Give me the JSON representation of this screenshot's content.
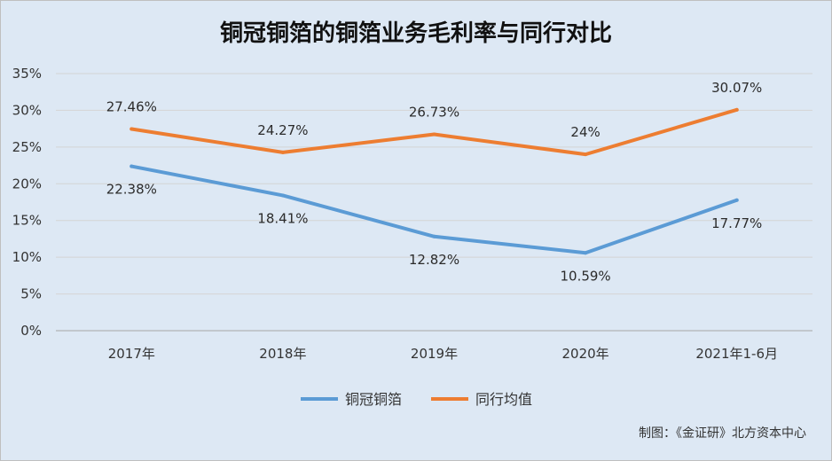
{
  "chart_data": {
    "type": "line",
    "title": "铜冠铜箔的铜箔业务毛利率与同行对比",
    "categories": [
      "2017年",
      "2018年",
      "2019年",
      "2020年",
      "2021年1-6月"
    ],
    "y_ticks": [
      "0%",
      "5%",
      "10%",
      "15%",
      "20%",
      "25%",
      "30%",
      "35%"
    ],
    "ylim": [
      0,
      35
    ],
    "grid": true,
    "legend_position": "bottom",
    "series": [
      {
        "name": "铜冠铜箔",
        "color": "#5b9bd5",
        "values": [
          22.38,
          18.41,
          12.82,
          10.59,
          17.77
        ],
        "labels": [
          "22.38%",
          "18.41%",
          "12.82%",
          "10.59%",
          "17.77%"
        ]
      },
      {
        "name": "同行均值",
        "color": "#ed7d31",
        "values": [
          27.46,
          24.27,
          26.73,
          24.0,
          30.07
        ],
        "labels": [
          "27.46%",
          "24.27%",
          "26.73%",
          "24%",
          "30.07%"
        ]
      }
    ],
    "source": "制图：《金证研》北方资本中心"
  }
}
